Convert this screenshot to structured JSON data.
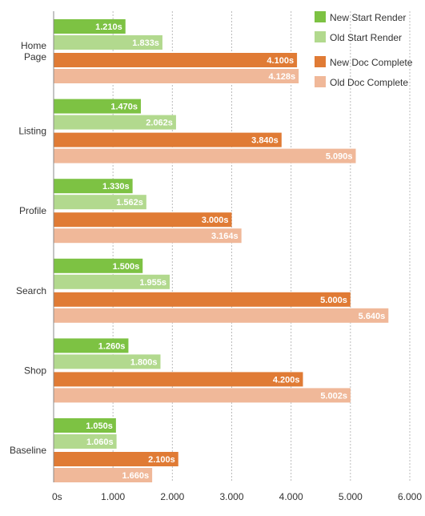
{
  "chart_data": {
    "type": "bar",
    "orientation": "horizontal",
    "categories": [
      "Home\nPage",
      "Listing",
      "Profile",
      "Search",
      "Shop",
      "Baseline"
    ],
    "series": [
      {
        "name": "New Start Render",
        "color": "#7dc243",
        "values": [
          1.21,
          1.47,
          1.33,
          1.5,
          1.26,
          1.05
        ],
        "labels": [
          "1.210s",
          "1.470s",
          "1.330s",
          "1.500s",
          "1.260s",
          "1.050s"
        ]
      },
      {
        "name": "Old Start Render",
        "color": "#b2d98e",
        "values": [
          1.833,
          2.062,
          1.562,
          1.955,
          1.8,
          1.06
        ],
        "labels": [
          "1.833s",
          "2.062s",
          "1.562s",
          "1.955s",
          "1.800s",
          "1.060s"
        ]
      },
      {
        "name": "New Doc Complete",
        "color": "#e07b35",
        "values": [
          4.1,
          3.84,
          3.0,
          5.0,
          4.2,
          2.1
        ],
        "labels": [
          "4.100s",
          "3.840s",
          "3.000s",
          "5.000s",
          "4.200s",
          "2.100s"
        ]
      },
      {
        "name": "Old Doc Complete",
        "color": "#f0b899",
        "values": [
          4.128,
          5.09,
          3.164,
          5.64,
          5.002,
          1.66
        ],
        "labels": [
          "4.128s",
          "5.090s",
          "3.164s",
          "5.640s",
          "5.002s",
          "1.660s"
        ]
      }
    ],
    "x_ticks": [
      0,
      1,
      2,
      3,
      4,
      5,
      6
    ],
    "x_tick_labels": [
      "0s",
      "1.000",
      "2.000",
      "3.000",
      "4.000",
      "5.000",
      "6.000"
    ],
    "xlim": [
      0,
      6
    ],
    "grid": true,
    "legend_position": "top-right"
  }
}
